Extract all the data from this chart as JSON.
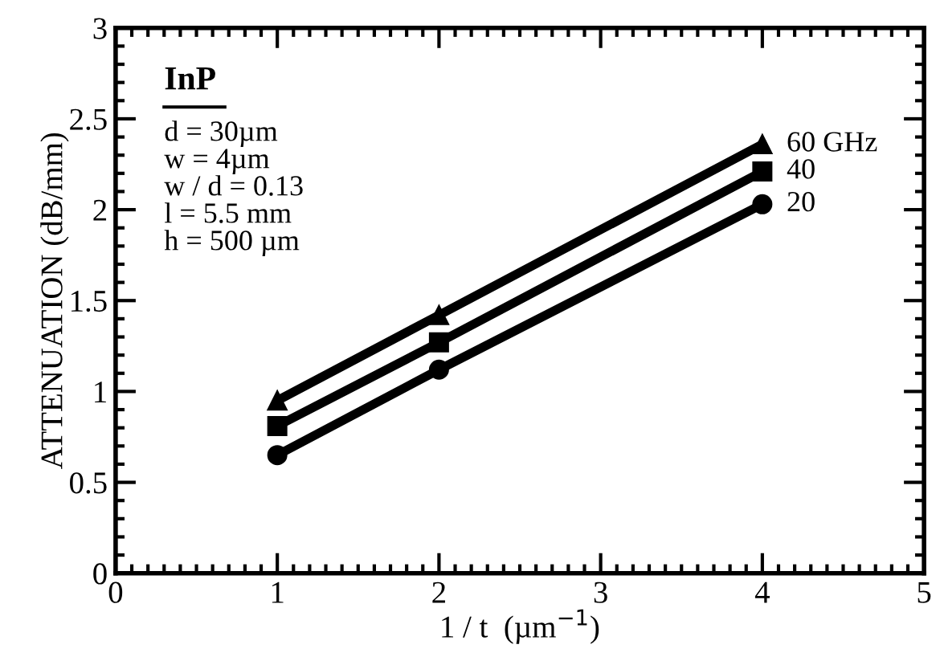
{
  "chart_data": {
    "type": "line",
    "xlabel": "1 / t  (µm$^{−1}$)",
    "ylabel": "ATTENUATION (dB/mm)",
    "x": [
      1,
      2,
      4
    ],
    "series": [
      {
        "name": "60 GHz",
        "color": "#000000",
        "marker": "triangle",
        "values": [
          0.95,
          1.42,
          2.36
        ]
      },
      {
        "name": "40",
        "color": "#000000",
        "marker": "square",
        "values": [
          0.81,
          1.27,
          2.21
        ]
      },
      {
        "name": "20",
        "color": "#000000",
        "marker": "circle",
        "values": [
          0.65,
          1.12,
          2.03
        ]
      }
    ],
    "xlim": [
      0,
      5
    ],
    "xticks": [
      0,
      1,
      2,
      3,
      4,
      5
    ],
    "ylim": [
      0,
      3
    ],
    "yticks": [
      0,
      0.5,
      1,
      1.5,
      2,
      2.5,
      3
    ],
    "grid": false,
    "legend": "right",
    "line_style": "solid",
    "annotations": [
      "InP",
      "d = 30µm\nw = 4µm\nw / d = 0.13\nl = 5.5 mm\nh = 500 µm"
    ]
  }
}
